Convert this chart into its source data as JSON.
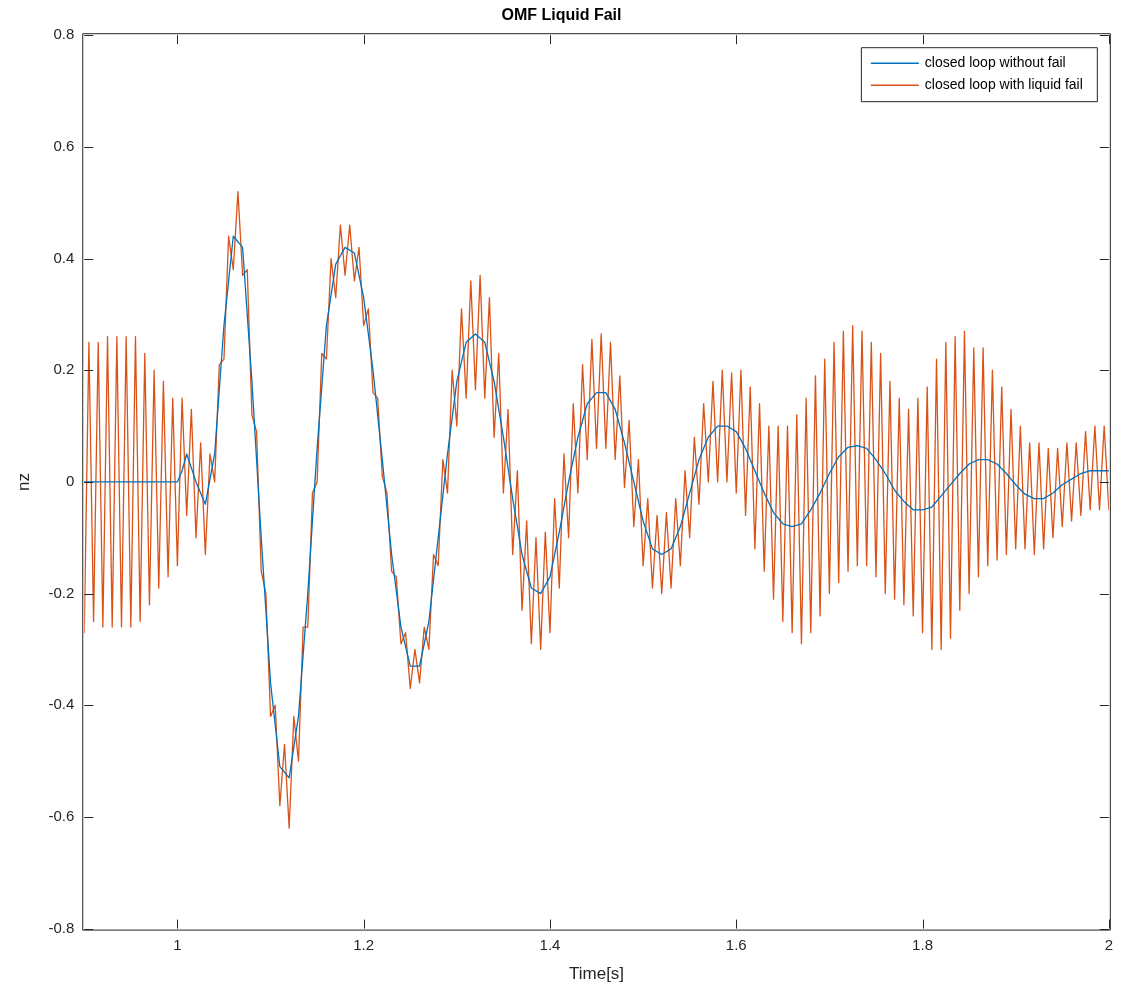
{
  "chart_data": {
    "type": "line",
    "title": "OMF Liquid Fail",
    "xlabel": "Time[s]",
    "ylabel": "nz",
    "xlim": [
      0.9,
      2
    ],
    "xticks": [
      1,
      1.2,
      1.4,
      1.6,
      1.8,
      2
    ],
    "ylim": [
      -0.8,
      0.8
    ],
    "yticks": [
      -0.8,
      -0.6,
      -0.4,
      -0.2,
      0,
      0.2,
      0.4,
      0.6,
      0.8
    ],
    "grid": false,
    "legend": "top right",
    "marker": "none",
    "line_style": "solid",
    "series": [
      {
        "name": "closed loop without fail",
        "color": "#0072bd",
        "x": [
          0.9,
          1.0,
          1.005,
          1.01,
          1.02,
          1.03,
          1.04,
          1.05,
          1.06,
          1.07,
          1.08,
          1.09,
          1.1,
          1.11,
          1.12,
          1.13,
          1.14,
          1.15,
          1.16,
          1.17,
          1.18,
          1.19,
          1.2,
          1.21,
          1.22,
          1.23,
          1.24,
          1.25,
          1.26,
          1.27,
          1.28,
          1.29,
          1.3,
          1.31,
          1.32,
          1.33,
          1.34,
          1.35,
          1.36,
          1.37,
          1.38,
          1.39,
          1.4,
          1.41,
          1.42,
          1.43,
          1.44,
          1.45,
          1.46,
          1.47,
          1.48,
          1.49,
          1.5,
          1.51,
          1.52,
          1.53,
          1.54,
          1.55,
          1.56,
          1.57,
          1.58,
          1.59,
          1.6,
          1.61,
          1.62,
          1.63,
          1.64,
          1.65,
          1.66,
          1.67,
          1.68,
          1.69,
          1.7,
          1.71,
          1.72,
          1.73,
          1.74,
          1.75,
          1.76,
          1.77,
          1.78,
          1.79,
          1.8,
          1.81,
          1.82,
          1.83,
          1.84,
          1.85,
          1.86,
          1.87,
          1.88,
          1.89,
          1.9,
          1.91,
          1.92,
          1.93,
          1.94,
          1.95,
          1.96,
          1.97,
          1.98,
          1.99,
          2.0
        ],
        "values": [
          0,
          0,
          0.02,
          0.05,
          0,
          -0.04,
          0.05,
          0.28,
          0.44,
          0.42,
          0.18,
          -0.1,
          -0.36,
          -0.51,
          -0.53,
          -0.42,
          -0.2,
          0.06,
          0.28,
          0.39,
          0.42,
          0.41,
          0.33,
          0.2,
          0.04,
          -0.13,
          -0.26,
          -0.33,
          -0.33,
          -0.25,
          -0.1,
          0.05,
          0.18,
          0.25,
          0.265,
          0.25,
          0.18,
          0.08,
          -0.03,
          -0.13,
          -0.19,
          -0.2,
          -0.17,
          -0.09,
          0,
          0.08,
          0.14,
          0.16,
          0.16,
          0.13,
          0.07,
          0,
          -0.07,
          -0.12,
          -0.13,
          -0.12,
          -0.08,
          -0.02,
          0.04,
          0.08,
          0.1,
          0.1,
          0.09,
          0.06,
          0.02,
          -0.02,
          -0.055,
          -0.075,
          -0.08,
          -0.075,
          -0.05,
          -0.02,
          0.015,
          0.045,
          0.062,
          0.065,
          0.06,
          0.04,
          0.015,
          -0.015,
          -0.035,
          -0.05,
          -0.05,
          -0.045,
          -0.025,
          -0.005,
          0.015,
          0.032,
          0.04,
          0.04,
          0.032,
          0.015,
          -0.005,
          -0.022,
          -0.03,
          -0.03,
          -0.02,
          -0.005,
          0.005,
          0.015,
          0.02,
          0.02,
          0.02
        ]
      },
      {
        "name": "closed loop with liquid fail",
        "color": "#d95319",
        "x": [
          0.9,
          0.905,
          0.91,
          0.915,
          0.92,
          0.925,
          0.93,
          0.935,
          0.94,
          0.945,
          0.95,
          0.955,
          0.96,
          0.965,
          0.97,
          0.975,
          0.98,
          0.985,
          0.99,
          0.995,
          1.0,
          1.005,
          1.01,
          1.015,
          1.02,
          1.025,
          1.03,
          1.035,
          1.04,
          1.045,
          1.05,
          1.055,
          1.06,
          1.065,
          1.07,
          1.075,
          1.08,
          1.085,
          1.09,
          1.095,
          1.1,
          1.105,
          1.11,
          1.115,
          1.12,
          1.125,
          1.13,
          1.135,
          1.14,
          1.145,
          1.15,
          1.155,
          1.16,
          1.165,
          1.17,
          1.175,
          1.18,
          1.185,
          1.19,
          1.195,
          1.2,
          1.205,
          1.21,
          1.215,
          1.22,
          1.225,
          1.23,
          1.235,
          1.24,
          1.245,
          1.25,
          1.255,
          1.26,
          1.265,
          1.27,
          1.275,
          1.28,
          1.285,
          1.29,
          1.295,
          1.3,
          1.305,
          1.31,
          1.315,
          1.32,
          1.325,
          1.33,
          1.335,
          1.34,
          1.345,
          1.35,
          1.355,
          1.36,
          1.365,
          1.37,
          1.375,
          1.38,
          1.385,
          1.39,
          1.395,
          1.4,
          1.405,
          1.41,
          1.415,
          1.42,
          1.425,
          1.43,
          1.435,
          1.44,
          1.445,
          1.45,
          1.455,
          1.46,
          1.465,
          1.47,
          1.475,
          1.48,
          1.485,
          1.49,
          1.495,
          1.5,
          1.505,
          1.51,
          1.515,
          1.52,
          1.525,
          1.53,
          1.535,
          1.54,
          1.545,
          1.55,
          1.555,
          1.56,
          1.565,
          1.57,
          1.575,
          1.58,
          1.585,
          1.59,
          1.595,
          1.6,
          1.605,
          1.61,
          1.615,
          1.62,
          1.625,
          1.63,
          1.635,
          1.64,
          1.645,
          1.65,
          1.655,
          1.66,
          1.665,
          1.67,
          1.675,
          1.68,
          1.685,
          1.69,
          1.695,
          1.7,
          1.705,
          1.71,
          1.715,
          1.72,
          1.725,
          1.73,
          1.735,
          1.74,
          1.745,
          1.75,
          1.755,
          1.76,
          1.765,
          1.77,
          1.775,
          1.78,
          1.785,
          1.79,
          1.795,
          1.8,
          1.805,
          1.81,
          1.815,
          1.82,
          1.825,
          1.83,
          1.835,
          1.84,
          1.845,
          1.85,
          1.855,
          1.86,
          1.865,
          1.87,
          1.875,
          1.88,
          1.885,
          1.89,
          1.895,
          1.9,
          1.905,
          1.91,
          1.915,
          1.92,
          1.925,
          1.93,
          1.935,
          1.94,
          1.945,
          1.95,
          1.955,
          1.96,
          1.965,
          1.97,
          1.975,
          1.98,
          1.985,
          1.99,
          1.995,
          2.0
        ],
        "values": [
          -0.27,
          0.25,
          -0.25,
          0.25,
          -0.26,
          0.26,
          -0.26,
          0.26,
          -0.26,
          0.26,
          -0.26,
          0.26,
          -0.25,
          0.23,
          -0.22,
          0.2,
          -0.19,
          0.18,
          -0.17,
          0.15,
          -0.15,
          0.15,
          -0.06,
          0.13,
          -0.1,
          0.07,
          -0.13,
          0.05,
          0,
          0.21,
          0.22,
          0.44,
          0.38,
          0.52,
          0.37,
          0.38,
          0.12,
          0.09,
          -0.16,
          -0.2,
          -0.42,
          -0.4,
          -0.58,
          -0.47,
          -0.62,
          -0.42,
          -0.5,
          -0.26,
          -0.26,
          -0.02,
          0,
          0.23,
          0.22,
          0.4,
          0.33,
          0.46,
          0.37,
          0.46,
          0.36,
          0.42,
          0.28,
          0.31,
          0.16,
          0.15,
          0.01,
          -0.02,
          -0.16,
          -0.17,
          -0.29,
          -0.27,
          -0.37,
          -0.3,
          -0.36,
          -0.26,
          -0.3,
          -0.13,
          -0.15,
          0.04,
          -0.02,
          0.2,
          0.1,
          0.31,
          0.15,
          0.36,
          0.165,
          0.37,
          0.15,
          0.33,
          0.08,
          0.23,
          -0.02,
          0.13,
          -0.13,
          0.02,
          -0.23,
          -0.07,
          -0.29,
          -0.1,
          -0.3,
          -0.09,
          -0.27,
          -0.03,
          -0.19,
          0.05,
          -0.1,
          0.14,
          -0.02,
          0.21,
          0.04,
          0.255,
          0.06,
          0.265,
          0.06,
          0.25,
          0.04,
          0.19,
          -0.01,
          0.11,
          -0.08,
          0.04,
          -0.15,
          -0.03,
          -0.19,
          -0.06,
          -0.2,
          -0.055,
          -0.19,
          -0.03,
          -0.15,
          0.02,
          -0.1,
          0.08,
          -0.04,
          0.14,
          0,
          0.18,
          0,
          0.2,
          0,
          0.195,
          -0.02,
          0.2,
          -0.06,
          0.17,
          -0.12,
          0.14,
          -0.16,
          0.1,
          -0.21,
          0.1,
          -0.25,
          0.1,
          -0.27,
          0.12,
          -0.29,
          0.15,
          -0.27,
          0.19,
          -0.24,
          0.22,
          -0.2,
          0.25,
          -0.18,
          0.27,
          -0.16,
          0.28,
          -0.15,
          0.27,
          -0.15,
          0.25,
          -0.17,
          0.23,
          -0.2,
          0.18,
          -0.21,
          0.15,
          -0.22,
          0.13,
          -0.24,
          0.15,
          -0.27,
          0.17,
          -0.3,
          0.22,
          -0.3,
          0.25,
          -0.28,
          0.26,
          -0.23,
          0.27,
          -0.2,
          0.24,
          -0.17,
          0.24,
          -0.15,
          0.2,
          -0.14,
          0.17,
          -0.13,
          0.13,
          -0.12,
          0.1,
          -0.12,
          0.07,
          -0.13,
          0.07,
          -0.12,
          0.06,
          -0.1,
          0.06,
          -0.08,
          0.07,
          -0.07,
          0.07,
          -0.06,
          0.09,
          -0.05,
          0.1,
          -0.05,
          0.1,
          -0.05
        ]
      }
    ]
  }
}
